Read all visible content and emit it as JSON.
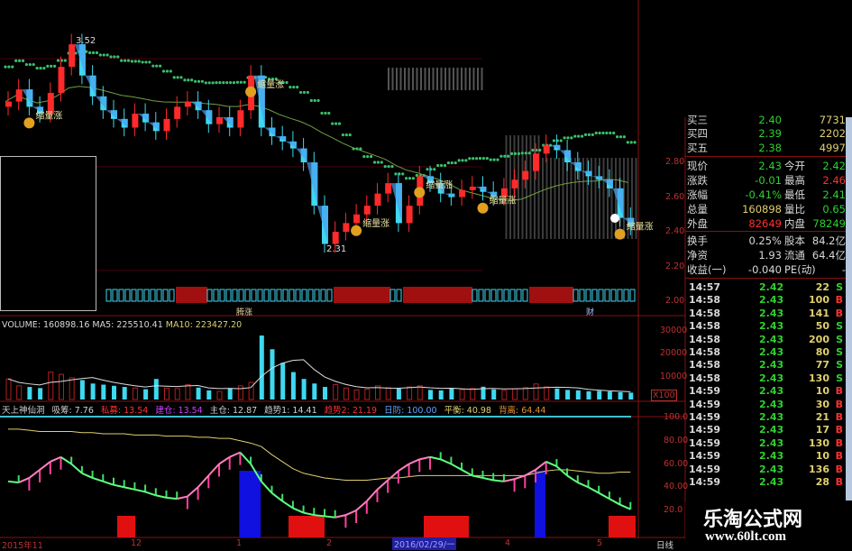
{
  "colors": {
    "up": "#ff2a2a",
    "down": "#3fd8f0",
    "ma": "#39c06a",
    "grid": "#5a0000",
    "axis": "#c03030",
    "green": "#30d030",
    "red": "#ff3030",
    "yellow": "#e0d070"
  },
  "kline": {
    "high_label": "3.52",
    "low_label": "2.31",
    "signal_label": "缩量涨",
    "signal_bars": [
      2,
      23,
      33,
      39,
      45,
      58
    ],
    "closes": [
      3.15,
      3.22,
      3.12,
      3.08,
      3.2,
      3.35,
      3.48,
      3.3,
      3.18,
      3.1,
      3.05,
      3.0,
      3.08,
      3.03,
      2.98,
      3.05,
      3.12,
      3.15,
      3.1,
      3.02,
      3.06,
      3.0,
      3.1,
      3.3,
      3.0,
      2.95,
      2.92,
      2.88,
      2.8,
      2.55,
      2.33,
      2.4,
      2.45,
      2.5,
      2.55,
      2.62,
      2.68,
      2.45,
      2.55,
      2.72,
      2.68,
      2.62,
      2.6,
      2.64,
      2.66,
      2.63,
      2.6,
      2.65,
      2.7,
      2.75,
      2.85,
      2.9,
      2.87,
      2.8,
      2.75,
      2.72,
      2.7,
      2.65,
      2.48,
      2.43
    ],
    "price_ticks": [
      "2.80",
      "2.60",
      "2.40",
      "2.20",
      "2.00"
    ],
    "strip_labels": [
      "腾涨",
      "财"
    ]
  },
  "volume": {
    "header": {
      "name": "VOLUME: 160898.16",
      "ma5": "MA5: 225510.41",
      "ma10": "MA10: 223427.20"
    },
    "ticks": [
      "30000",
      "20000",
      "10000"
    ],
    "unit": "X100",
    "values": [
      9000,
      6000,
      5500,
      5000,
      12000,
      11000,
      9500,
      8500,
      7000,
      6500,
      6000,
      5500,
      5000,
      4500,
      9000,
      5000,
      4800,
      6500,
      5200,
      4000,
      3500,
      5000,
      6000,
      7500,
      28000,
      22000,
      16000,
      12000,
      9000,
      7000,
      5500,
      6500,
      5000,
      4200,
      4500,
      6000,
      5200,
      4800,
      5500,
      6000,
      4200,
      4000,
      5000,
      4300,
      4800,
      5600,
      4400,
      4000,
      4700,
      5200,
      6800,
      5500,
      4800,
      4200,
      4000,
      3600,
      3800,
      3500,
      3200,
      3000
    ]
  },
  "indicator": {
    "header": [
      {
        "text": "天上神仙洞",
        "color": "#d0d0d0"
      },
      {
        "text": "吸筹: 7.76",
        "color": "#d0d0d0"
      },
      {
        "text": "私募: 13.54",
        "color": "#ff3030"
      },
      {
        "text": "建仓: 13.54",
        "color": "#d040ff"
      },
      {
        "text": "主仓: 12.87",
        "color": "#d0d0d0"
      },
      {
        "text": "趋势1: 14.41",
        "color": "#d0d0d0"
      },
      {
        "text": "趋势2: 21.19",
        "color": "#ff3030"
      },
      {
        "text": "日防: 100.00",
        "color": "#60a0ff"
      },
      {
        "text": "平衡: 40.98",
        "color": "#e0d070"
      },
      {
        "text": "背离: 64.44",
        "color": "#e09030"
      }
    ],
    "ticks": [
      "100.0",
      "80.00",
      "60.00",
      "40.00",
      "20.0"
    ],
    "trend": [
      45,
      44,
      48,
      55,
      62,
      66,
      60,
      52,
      48,
      45,
      42,
      40,
      38,
      36,
      33,
      31,
      30,
      32,
      40,
      50,
      60,
      66,
      70,
      60,
      45,
      35,
      28,
      22,
      18,
      16,
      15,
      14,
      16,
      20,
      28,
      38,
      46,
      54,
      60,
      64,
      66,
      64,
      60,
      55,
      50,
      48,
      46,
      45,
      47,
      50,
      55,
      62,
      58,
      50,
      44,
      40,
      35,
      30,
      25,
      21
    ],
    "balance": [
      90,
      90,
      89,
      88,
      88,
      88,
      88,
      87,
      87,
      86,
      86,
      86,
      85,
      85,
      85,
      84,
      84,
      84,
      83,
      83,
      82,
      82,
      80,
      78,
      75,
      68,
      62,
      56,
      52,
      50,
      48,
      47,
      46,
      46,
      46,
      47,
      48,
      48,
      49,
      50,
      50,
      50,
      50,
      50,
      50,
      50,
      50,
      50,
      50,
      50,
      52,
      54,
      55,
      55,
      54,
      53,
      52,
      52,
      53,
      53
    ],
    "blue_bars": [
      22,
      23,
      50
    ]
  },
  "quote": {
    "rows": [
      {
        "l1": "买三",
        "v1": "2.40",
        "v1c": "#30d030",
        "v2": "7731",
        "v2c": "#e0d070"
      },
      {
        "l1": "买四",
        "v1": "2.39",
        "v1c": "#30d030",
        "v2": "2202",
        "v2c": "#e0d070"
      },
      {
        "l1": "买五",
        "v1": "2.38",
        "v1c": "#30d030",
        "v2": "4997",
        "v2c": "#e0d070"
      },
      {
        "l1": "现价",
        "v1": "2.43",
        "v1c": "#30d030",
        "l2": "今开",
        "v2": "2.42",
        "v2c": "#30d030"
      },
      {
        "l1": "涨跌",
        "v1": "-0.01",
        "v1c": "#30d030",
        "l2": "最高",
        "v2": "2.46",
        "v2c": "#ff3030"
      },
      {
        "l1": "涨幅",
        "v1": "-0.41%",
        "v1c": "#30d030",
        "l2": "最低",
        "v2": "2.41",
        "v2c": "#30d030"
      },
      {
        "l1": "总量",
        "v1": "160898",
        "v1c": "#e0d070",
        "l2": "量比",
        "v2": "0.65",
        "v2c": "#30d030"
      },
      {
        "l1": "外盘",
        "v1": "82649",
        "v1c": "#ff3030",
        "l2": "内盘",
        "v2": "78249",
        "v2c": "#30d030"
      },
      {
        "l1": "换手",
        "v1": "0.25%",
        "v1c": "#d8d8d8",
        "l2": "股本",
        "v2": "84.2亿",
        "v2c": "#d8d8d8"
      },
      {
        "l1": "净资",
        "v1": "1.93",
        "v1c": "#d8d8d8",
        "l2": "流通",
        "v2": "64.4亿",
        "v2c": "#d8d8d8"
      },
      {
        "l1": "收益(一)",
        "v1": "-0.040",
        "v1c": "#d8d8d8",
        "l2": "PE(动)",
        "v2": "-",
        "v2c": "#d8d8d8"
      }
    ],
    "ticks": [
      {
        "t": "14:57",
        "p": "2.42",
        "v": "22",
        "s": "S"
      },
      {
        "t": "14:58",
        "p": "2.43",
        "v": "100",
        "s": "B"
      },
      {
        "t": "14:58",
        "p": "2.43",
        "v": "141",
        "s": "B"
      },
      {
        "t": "14:58",
        "p": "2.43",
        "v": "50",
        "s": "S"
      },
      {
        "t": "14:58",
        "p": "2.43",
        "v": "200",
        "s": "S"
      },
      {
        "t": "14:58",
        "p": "2.43",
        "v": "80",
        "s": "S"
      },
      {
        "t": "14:58",
        "p": "2.43",
        "v": "77",
        "s": "S"
      },
      {
        "t": "14:58",
        "p": "2.43",
        "v": "130",
        "s": "S"
      },
      {
        "t": "14:59",
        "p": "2.43",
        "v": "10",
        "s": "B"
      },
      {
        "t": "14:59",
        "p": "2.43",
        "v": "30",
        "s": "B"
      },
      {
        "t": "14:59",
        "p": "2.43",
        "v": "21",
        "s": "B"
      },
      {
        "t": "14:59",
        "p": "2.43",
        "v": "17",
        "s": "B"
      },
      {
        "t": "14:59",
        "p": "2.43",
        "v": "130",
        "s": "B"
      },
      {
        "t": "14:59",
        "p": "2.43",
        "v": "10",
        "s": "B"
      },
      {
        "t": "14:59",
        "p": "2.43",
        "v": "136",
        "s": "B"
      },
      {
        "t": "14:59",
        "p": "2.43",
        "v": "28",
        "s": "B"
      }
    ]
  },
  "date_axis": {
    "labels": [
      "2015年11",
      "12",
      "1",
      "2",
      "4",
      "5"
    ],
    "cursor_date": "2016/02/29/一",
    "period": "日线"
  },
  "watermark": {
    "title": "乐淘公式网",
    "url": "www.60lt.com"
  }
}
